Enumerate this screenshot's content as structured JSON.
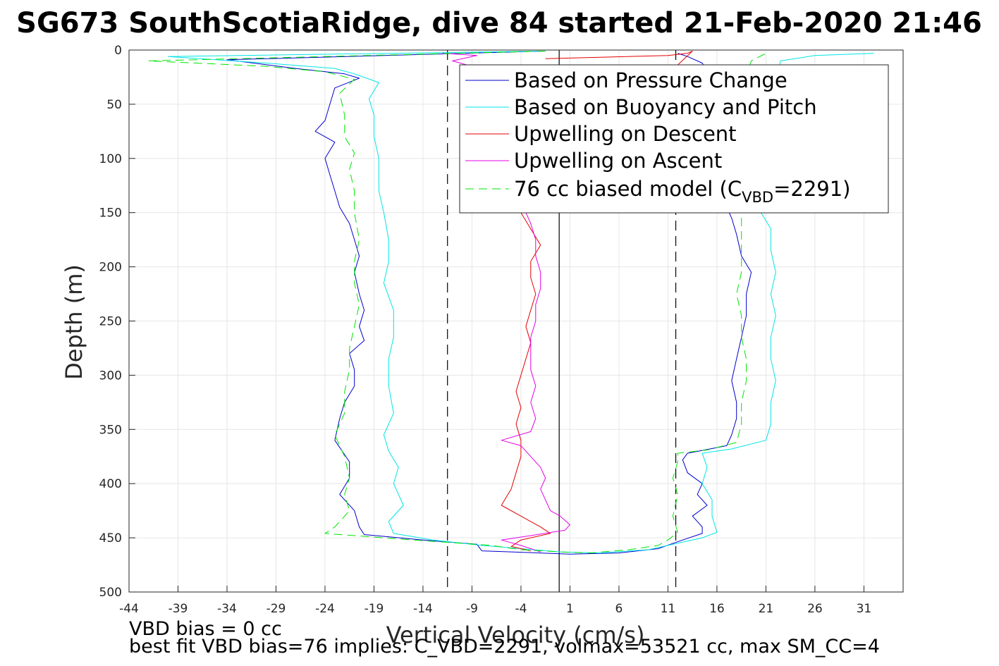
{
  "chart_data": {
    "type": "line",
    "title": "SG673 SouthScotiaRidge, dive 84 started 21-Feb-2020 21:46",
    "xlabel": "Vertical Velocity (cm/s)",
    "ylabel": "Depth (m)",
    "xlim": [
      -44,
      35
    ],
    "ylim": [
      0,
      500
    ],
    "y_reversed": true,
    "grid": true,
    "legend_position": "top-right",
    "x_ticks": [
      -44,
      -39,
      -34,
      -29,
      -24,
      -19,
      -14,
      -9,
      -4,
      1,
      6,
      11,
      16,
      21,
      26,
      31
    ],
    "y_ticks": [
      0,
      50,
      100,
      150,
      200,
      250,
      300,
      350,
      400,
      450,
      500
    ],
    "reference_lines": [
      {
        "x": -11.5,
        "style": "dashed",
        "color": "#000000"
      },
      {
        "x": -0.1,
        "style": "solid",
        "color": "#000000"
      },
      {
        "x": 11.8,
        "style": "dashed",
        "color": "#000000"
      }
    ],
    "legend_vbd_label": {
      "prefix": "76 cc biased model (C",
      "subscript": "VBD",
      "suffix": "=2291)"
    },
    "series": [
      {
        "name": "Based on Pressure Change",
        "color": "#0000cc",
        "style": "solid",
        "points": [
          [
            -1.5,
            1
          ],
          [
            -34,
            9
          ],
          [
            -27,
            17
          ],
          [
            -22,
            22
          ],
          [
            -20.5,
            26
          ],
          [
            -23,
            35
          ],
          [
            -23.5,
            50
          ],
          [
            -24,
            65
          ],
          [
            -25,
            75
          ],
          [
            -23,
            85
          ],
          [
            -24,
            100
          ],
          [
            -23.5,
            115
          ],
          [
            -23,
            130
          ],
          [
            -22.5,
            145
          ],
          [
            -21.5,
            160
          ],
          [
            -21,
            175
          ],
          [
            -20.5,
            190
          ],
          [
            -21,
            205
          ],
          [
            -20.5,
            225
          ],
          [
            -20,
            240
          ],
          [
            -20.5,
            255
          ],
          [
            -20,
            268
          ],
          [
            -21.5,
            280
          ],
          [
            -21,
            295
          ],
          [
            -21,
            310
          ],
          [
            -22,
            325
          ],
          [
            -22.5,
            340
          ],
          [
            -23,
            360
          ],
          [
            -21.5,
            380
          ],
          [
            -21.5,
            395
          ],
          [
            -22.5,
            410
          ],
          [
            -21,
            425
          ],
          [
            -20.5,
            440
          ],
          [
            -20,
            447
          ],
          [
            -14,
            452
          ],
          [
            -8.5,
            456
          ],
          [
            -8,
            462
          ],
          [
            -5,
            463
          ],
          [
            1,
            465
          ],
          [
            6,
            464
          ],
          [
            10,
            460
          ],
          [
            12.5,
            452
          ],
          [
            14.5,
            446
          ],
          [
            14.5,
            440
          ],
          [
            13.5,
            430
          ],
          [
            15,
            420
          ],
          [
            14,
            410
          ],
          [
            14.5,
            400
          ],
          [
            13,
            390
          ],
          [
            12.5,
            378
          ],
          [
            13,
            372
          ],
          [
            17,
            365
          ],
          [
            17.5,
            355
          ],
          [
            18,
            340
          ],
          [
            18,
            325
          ],
          [
            17.5,
            305
          ],
          [
            18,
            285
          ],
          [
            18.5,
            265
          ],
          [
            19,
            245
          ],
          [
            19,
            225
          ],
          [
            19.5,
            205
          ],
          [
            18.5,
            190
          ],
          [
            18,
            170
          ],
          [
            17.5,
            155
          ],
          [
            17,
            145
          ],
          [
            16.5,
            110
          ],
          [
            16.5,
            70
          ],
          [
            16,
            40
          ],
          [
            15,
            20
          ],
          [
            14.5,
            12
          ],
          [
            13,
            6
          ],
          [
            12,
            3
          ]
        ]
      },
      {
        "name": "Based on Buoyancy and Pitch",
        "color": "#00e5e5",
        "style": "solid",
        "points": [
          [
            -1.5,
            1
          ],
          [
            -40,
            6
          ],
          [
            -30,
            12
          ],
          [
            -23,
            17
          ],
          [
            -21,
            22
          ],
          [
            -18.5,
            30
          ],
          [
            -19.5,
            45
          ],
          [
            -19,
            60
          ],
          [
            -19,
            80
          ],
          [
            -18.5,
            100
          ],
          [
            -18.5,
            130
          ],
          [
            -18,
            150
          ],
          [
            -17.5,
            175
          ],
          [
            -17.5,
            195
          ],
          [
            -18,
            215
          ],
          [
            -17,
            240
          ],
          [
            -17,
            265
          ],
          [
            -17.5,
            285
          ],
          [
            -17.5,
            310
          ],
          [
            -17,
            335
          ],
          [
            -18,
            355
          ],
          [
            -17.5,
            370
          ],
          [
            -16.5,
            385
          ],
          [
            -17,
            400
          ],
          [
            -16,
            420
          ],
          [
            -17.5,
            435
          ],
          [
            -17,
            446
          ],
          [
            -13,
            452
          ],
          [
            -8,
            457
          ],
          [
            -4,
            460
          ],
          [
            0,
            463
          ],
          [
            4,
            464
          ],
          [
            9,
            461
          ],
          [
            12,
            455
          ],
          [
            14.5,
            450
          ],
          [
            16,
            445
          ],
          [
            15.5,
            430
          ],
          [
            15.5,
            415
          ],
          [
            14.5,
            400
          ],
          [
            15,
            385
          ],
          [
            14.5,
            372
          ],
          [
            17.5,
            368
          ],
          [
            21,
            360
          ],
          [
            21.5,
            345
          ],
          [
            21.5,
            325
          ],
          [
            22,
            305
          ],
          [
            21.5,
            285
          ],
          [
            21.5,
            265
          ],
          [
            22,
            245
          ],
          [
            21.5,
            225
          ],
          [
            22,
            205
          ],
          [
            21.5,
            185
          ],
          [
            21.5,
            165
          ],
          [
            20.5,
            150
          ],
          [
            20.5,
            100
          ],
          [
            21,
            50
          ],
          [
            22,
            25
          ],
          [
            22.5,
            10
          ],
          [
            26,
            5
          ],
          [
            32,
            3
          ]
        ]
      },
      {
        "name": "Upwelling on Descent",
        "color": "#e50000",
        "style": "solid",
        "points": [
          [
            -1.5,
            8
          ],
          [
            11,
            5
          ],
          [
            13,
            3
          ],
          [
            13.5,
            1
          ],
          [
            -4,
            150
          ],
          [
            -3,
            165
          ],
          [
            -2,
            180
          ],
          [
            -3,
            195
          ],
          [
            -3,
            210
          ],
          [
            -2.5,
            225
          ],
          [
            -3,
            240
          ],
          [
            -3.5,
            255
          ],
          [
            -3,
            270
          ],
          [
            -3.5,
            285
          ],
          [
            -4,
            300
          ],
          [
            -4.5,
            315
          ],
          [
            -4,
            330
          ],
          [
            -4.5,
            345
          ],
          [
            -4,
            360
          ],
          [
            -4,
            375
          ],
          [
            -4.5,
            390
          ],
          [
            -5,
            405
          ],
          [
            -6,
            420
          ],
          [
            -4,
            430
          ],
          [
            -2,
            440
          ],
          [
            -1,
            446
          ],
          [
            -4,
            452
          ],
          [
            -5,
            458
          ],
          [
            -3,
            462
          ]
        ]
      },
      {
        "name": "Upwelling on Ascent",
        "color": "#e500e5",
        "style": "solid",
        "points": [
          [
            -2,
            463
          ],
          [
            -4,
            457
          ],
          [
            -6,
            452
          ],
          [
            -3,
            448
          ],
          [
            0.5,
            443
          ],
          [
            1,
            438
          ],
          [
            0,
            430
          ],
          [
            -1,
            425
          ],
          [
            -1.5,
            415
          ],
          [
            -2,
            405
          ],
          [
            -1.5,
            395
          ],
          [
            -2,
            385
          ],
          [
            -3,
            375
          ],
          [
            -4,
            365
          ],
          [
            -6,
            360
          ],
          [
            -3,
            352
          ],
          [
            -2.5,
            340
          ],
          [
            -3,
            325
          ],
          [
            -2.5,
            310
          ],
          [
            -3,
            295
          ],
          [
            -3,
            280
          ],
          [
            -3,
            265
          ],
          [
            -2.5,
            250
          ],
          [
            -2.5,
            235
          ],
          [
            -2,
            220
          ],
          [
            -2,
            205
          ],
          [
            -2.5,
            190
          ],
          [
            -2.5,
            175
          ],
          [
            -3,
            160
          ],
          [
            -3.5,
            150
          ],
          [
            -9,
            15
          ],
          [
            -11,
            10
          ],
          [
            -8.5,
            5
          ],
          [
            -12,
            3
          ]
        ]
      },
      {
        "name": "76 cc biased model (C_VBD=2291)",
        "color": "#00e600",
        "style": "dashed",
        "points": [
          [
            -1.5,
            1
          ],
          [
            -42,
            10
          ],
          [
            -30,
            15
          ],
          [
            -24,
            20
          ],
          [
            -21,
            27
          ],
          [
            -22.5,
            40
          ],
          [
            -22,
            60
          ],
          [
            -22,
            80
          ],
          [
            -21,
            95
          ],
          [
            -21.5,
            110
          ],
          [
            -21,
            130
          ],
          [
            -21,
            150
          ],
          [
            -20.5,
            175
          ],
          [
            -21,
            195
          ],
          [
            -21,
            215
          ],
          [
            -20.5,
            235
          ],
          [
            -21,
            255
          ],
          [
            -21.5,
            275
          ],
          [
            -21.5,
            295
          ],
          [
            -22,
            315
          ],
          [
            -22,
            335
          ],
          [
            -23,
            355
          ],
          [
            -22,
            375
          ],
          [
            -21.5,
            395
          ],
          [
            -22,
            410
          ],
          [
            -21.5,
            425
          ],
          [
            -23,
            440
          ],
          [
            -24,
            446
          ],
          [
            -15,
            452
          ],
          [
            -7,
            457
          ],
          [
            -4,
            461
          ],
          [
            0,
            463
          ],
          [
            3,
            464
          ],
          [
            7,
            461
          ],
          [
            10,
            457
          ],
          [
            11,
            452
          ],
          [
            12,
            445
          ],
          [
            11.5,
            430
          ],
          [
            12,
            410
          ],
          [
            11.5,
            395
          ],
          [
            12,
            380
          ],
          [
            12,
            372
          ],
          [
            15,
            369
          ],
          [
            18,
            362
          ],
          [
            18.5,
            345
          ],
          [
            18.5,
            325
          ],
          [
            19,
            305
          ],
          [
            19,
            285
          ],
          [
            18.5,
            265
          ],
          [
            18.5,
            245
          ],
          [
            18,
            225
          ],
          [
            18.5,
            205
          ],
          [
            18.5,
            190
          ],
          [
            18.5,
            170
          ],
          [
            18.5,
            155
          ],
          [
            19,
            140
          ],
          [
            19,
            100
          ],
          [
            18.5,
            60
          ],
          [
            19,
            25
          ],
          [
            19.5,
            10
          ],
          [
            21,
            3
          ]
        ]
      }
    ]
  },
  "annotations": {
    "vbd_bias": "VBD bias = 0 cc",
    "best_fit": "best fit VBD bias=76 implies: C_VBD=2291, volmax=53521 cc, max SM_CC=4"
  }
}
